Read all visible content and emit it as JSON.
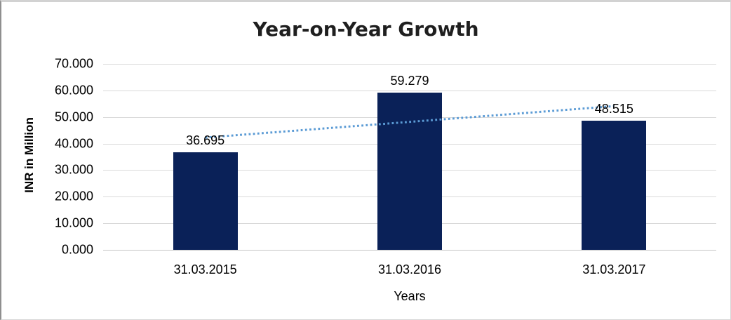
{
  "chart_data": {
    "type": "bar",
    "title": "Year-on-Year Growth",
    "categories": [
      "31.03.2015",
      "31.03.2016",
      "31.03.2017"
    ],
    "values": [
      36.695,
      59.279,
      48.515
    ],
    "data_labels": [
      "36.695",
      "59.279",
      "48.515"
    ],
    "xlabel": "Years",
    "ylabel": "INR in Million",
    "ylim": [
      0,
      70
    ],
    "ytick_step": 10,
    "ytick_labels": [
      "0.000",
      "10.000",
      "20.000",
      "30.000",
      "40.000",
      "50.000",
      "60.000",
      "70.000"
    ],
    "grid": true,
    "legend": "none",
    "bar_color": "#0A2158",
    "gridline_color": "#D9D9D9",
    "trendline": {
      "type": "linear",
      "style": "dotted",
      "color": "#5B9BD5",
      "endpoint_values": [
        42.253,
        54.073
      ]
    }
  }
}
